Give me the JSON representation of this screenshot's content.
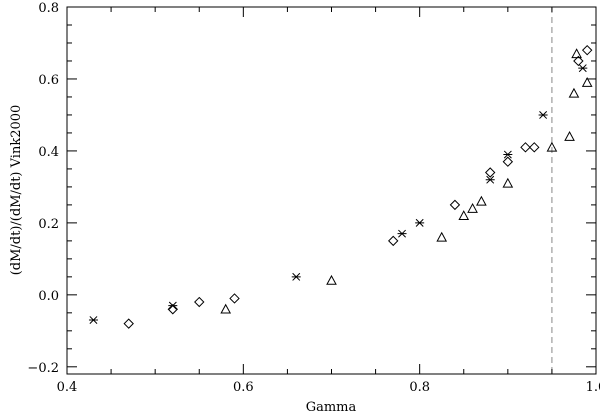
{
  "chart_data": {
    "type": "scatter",
    "xlabel": "Gamma",
    "ylabel": "(dM/dt)/(dM/dt) Vink2000",
    "xlim": [
      0.4,
      1.0
    ],
    "ylim": [
      -0.22,
      0.8
    ],
    "x_ticks": [
      0.4,
      0.6,
      0.8,
      1.0
    ],
    "x_tick_labels": [
      "0.4",
      "0.6",
      "0.8",
      "1.0"
    ],
    "y_ticks": [
      -0.2,
      0.0,
      0.2,
      0.4,
      0.6,
      0.8
    ],
    "y_tick_labels": [
      "−0.2",
      "0.0",
      "0.2",
      "0.4",
      "0.6",
      "0.8"
    ],
    "grid": false,
    "reference_line": {
      "x": 0.95,
      "style": "dashed",
      "color": "#888888"
    },
    "series": [
      {
        "marker": "asterisk",
        "points": [
          [
            0.43,
            -0.07
          ],
          [
            0.52,
            -0.03
          ],
          [
            0.66,
            0.05
          ],
          [
            0.78,
            0.17
          ],
          [
            0.8,
            0.2
          ],
          [
            0.88,
            0.32
          ],
          [
            0.9,
            0.39
          ],
          [
            0.94,
            0.5
          ],
          [
            0.985,
            0.63
          ]
        ]
      },
      {
        "marker": "diamond",
        "points": [
          [
            0.47,
            -0.08
          ],
          [
            0.52,
            -0.04
          ],
          [
            0.55,
            -0.02
          ],
          [
            0.59,
            -0.01
          ],
          [
            0.77,
            0.15
          ],
          [
            0.84,
            0.25
          ],
          [
            0.88,
            0.34
          ],
          [
            0.9,
            0.37
          ],
          [
            0.92,
            0.41
          ],
          [
            0.93,
            0.41
          ],
          [
            0.98,
            0.65
          ],
          [
            0.99,
            0.68
          ]
        ]
      },
      {
        "marker": "triangle",
        "points": [
          [
            0.58,
            -0.04
          ],
          [
            0.7,
            0.04
          ],
          [
            0.825,
            0.16
          ],
          [
            0.85,
            0.22
          ],
          [
            0.86,
            0.24
          ],
          [
            0.87,
            0.26
          ],
          [
            0.9,
            0.31
          ],
          [
            0.95,
            0.41
          ],
          [
            0.97,
            0.44
          ],
          [
            0.975,
            0.56
          ],
          [
            0.978,
            0.67
          ],
          [
            0.99,
            0.59
          ]
        ]
      }
    ]
  }
}
